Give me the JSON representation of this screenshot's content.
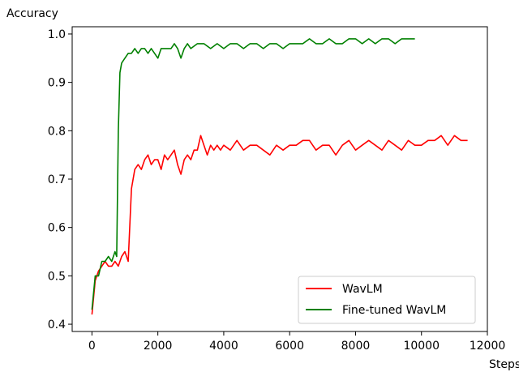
{
  "chart_data": {
    "type": "line",
    "xlabel": "Steps",
    "ylabel": "Accuracy",
    "xlim": [
      -600,
      12000
    ],
    "ylim": [
      0.385,
      1.015
    ],
    "xticks": [
      "0",
      "2000",
      "4000",
      "6000",
      "8000",
      "10000",
      "12000"
    ],
    "yticks": [
      "0.4",
      "0.5",
      "0.6",
      "0.7",
      "0.8",
      "0.9",
      "1.0"
    ],
    "grid": false,
    "legend_position": "lower-right",
    "series": [
      {
        "name": "WavLM",
        "color": "#ff0000",
        "x": [
          0,
          100,
          200,
          300,
          400,
          500,
          600,
          700,
          800,
          900,
          1000,
          1100,
          1200,
          1300,
          1400,
          1500,
          1600,
          1700,
          1800,
          1900,
          2000,
          2100,
          2200,
          2300,
          2400,
          2500,
          2600,
          2700,
          2800,
          2900,
          3000,
          3100,
          3200,
          3300,
          3400,
          3500,
          3600,
          3700,
          3800,
          3900,
          4000,
          4200,
          4400,
          4600,
          4800,
          5000,
          5200,
          5400,
          5600,
          5800,
          6000,
          6200,
          6400,
          6600,
          6800,
          7000,
          7200,
          7400,
          7600,
          7800,
          8000,
          8200,
          8400,
          8600,
          8800,
          9000,
          9200,
          9400,
          9600,
          9800,
          10000,
          10200,
          10400,
          10600,
          10800,
          11000,
          11200,
          11400
        ],
        "y": [
          0.42,
          0.49,
          0.51,
          0.52,
          0.53,
          0.52,
          0.52,
          0.53,
          0.52,
          0.54,
          0.55,
          0.53,
          0.68,
          0.72,
          0.73,
          0.72,
          0.74,
          0.75,
          0.73,
          0.74,
          0.74,
          0.72,
          0.75,
          0.74,
          0.75,
          0.76,
          0.73,
          0.71,
          0.74,
          0.75,
          0.74,
          0.76,
          0.76,
          0.79,
          0.77,
          0.75,
          0.77,
          0.76,
          0.77,
          0.76,
          0.77,
          0.76,
          0.78,
          0.76,
          0.77,
          0.77,
          0.76,
          0.75,
          0.77,
          0.76,
          0.77,
          0.77,
          0.78,
          0.78,
          0.76,
          0.77,
          0.77,
          0.75,
          0.77,
          0.78,
          0.76,
          0.77,
          0.78,
          0.77,
          0.76,
          0.78,
          0.77,
          0.76,
          0.78,
          0.77,
          0.77,
          0.78,
          0.78,
          0.79,
          0.77,
          0.79,
          0.78,
          0.78
        ]
      },
      {
        "name": "Fine-tuned WavLM",
        "color": "#008000",
        "x": [
          0,
          100,
          200,
          300,
          400,
          500,
          600,
          700,
          750,
          800,
          850,
          900,
          1000,
          1100,
          1200,
          1300,
          1400,
          1500,
          1600,
          1700,
          1800,
          1900,
          2000,
          2100,
          2200,
          2300,
          2400,
          2500,
          2600,
          2700,
          2800,
          2900,
          3000,
          3200,
          3400,
          3600,
          3800,
          4000,
          4200,
          4400,
          4600,
          4800,
          5000,
          5200,
          5400,
          5600,
          5800,
          6000,
          6200,
          6400,
          6600,
          6800,
          7000,
          7200,
          7400,
          7600,
          7800,
          8000,
          8200,
          8400,
          8600,
          8800,
          9000,
          9200,
          9400,
          9600,
          9800
        ],
        "y": [
          0.43,
          0.5,
          0.5,
          0.53,
          0.53,
          0.54,
          0.53,
          0.55,
          0.54,
          0.8,
          0.92,
          0.94,
          0.95,
          0.96,
          0.96,
          0.97,
          0.96,
          0.97,
          0.97,
          0.96,
          0.97,
          0.96,
          0.95,
          0.97,
          0.97,
          0.97,
          0.97,
          0.98,
          0.97,
          0.95,
          0.97,
          0.98,
          0.97,
          0.98,
          0.98,
          0.97,
          0.98,
          0.97,
          0.98,
          0.98,
          0.97,
          0.98,
          0.98,
          0.97,
          0.98,
          0.98,
          0.97,
          0.98,
          0.98,
          0.98,
          0.99,
          0.98,
          0.98,
          0.99,
          0.98,
          0.98,
          0.99,
          0.99,
          0.98,
          0.99,
          0.98,
          0.99,
          0.99,
          0.98,
          0.99,
          0.99,
          0.99
        ]
      }
    ]
  }
}
